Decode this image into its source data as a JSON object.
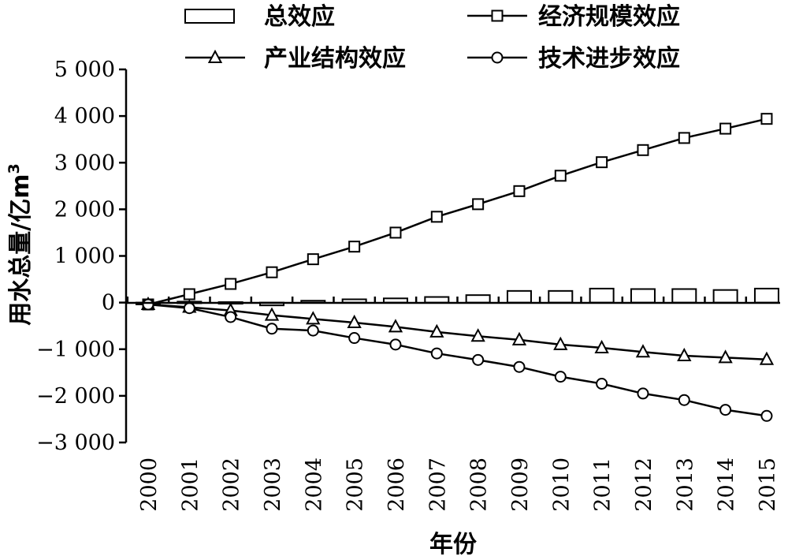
{
  "chart_data": {
    "type": "line",
    "title": "",
    "xlabel": "年份",
    "ylabel": "用水总量/亿m",
    "ylabel_superscript": "3",
    "ylim": [
      -3000,
      5000
    ],
    "yticks": [
      -3000,
      -2000,
      -1000,
      0,
      1000,
      2000,
      3000,
      4000,
      5000
    ],
    "ytick_labels": [
      "−3 000",
      "−2 000",
      "−1 000",
      "0",
      "1 000",
      "2 000",
      "3 000",
      "4 000",
      "5 000"
    ],
    "categories": [
      "2000",
      "2001",
      "2002",
      "2003",
      "2004",
      "2005",
      "2006",
      "2007",
      "2008",
      "2009",
      "2010",
      "2011",
      "2012",
      "2013",
      "2014",
      "2015"
    ],
    "legend_position": "top",
    "series": [
      {
        "name": "总效应",
        "style": "bar",
        "values": [
          -40,
          20,
          10,
          -60,
          40,
          70,
          90,
          120,
          160,
          250,
          250,
          300,
          290,
          290,
          270,
          300
        ]
      },
      {
        "name": "经济规模效应",
        "style": "line-square",
        "values": [
          -40,
          180,
          400,
          650,
          930,
          1200,
          1500,
          1840,
          2110,
          2390,
          2720,
          3010,
          3270,
          3530,
          3730,
          3940
        ]
      },
      {
        "name": "产业结构效应",
        "style": "line-triangle",
        "values": [
          -40,
          -100,
          -170,
          -270,
          -350,
          -430,
          -520,
          -630,
          -720,
          -800,
          -900,
          -970,
          -1060,
          -1140,
          -1180,
          -1220
        ]
      },
      {
        "name": "技术进步效应",
        "style": "line-circle",
        "values": [
          -40,
          -120,
          -310,
          -560,
          -600,
          -760,
          -900,
          -1090,
          -1230,
          -1380,
          -1590,
          -1740,
          -1950,
          -2090,
          -2300,
          -2430
        ]
      }
    ]
  }
}
